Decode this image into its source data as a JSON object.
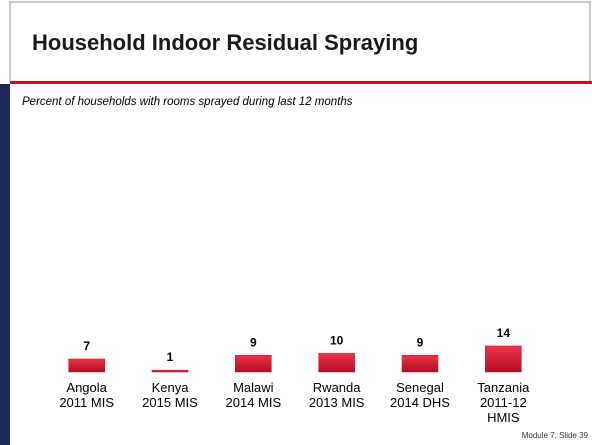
{
  "title": "Household Indoor Residual Spraying",
  "footer": "Module 7, Slide 39",
  "chart_data": {
    "type": "bar",
    "subtitle": "Percent of households with rooms sprayed during last 12 months",
    "categories": [
      "Angola\n2011 MIS",
      "Kenya\n2015 MIS",
      "Malawi\n2014 MIS",
      "Rwanda\n2013 MIS",
      "Senegal\n2014 DHS",
      "Tanzania\n2011-12\nHMIS"
    ],
    "values": [
      7,
      1,
      9,
      10,
      9,
      14
    ],
    "color": "#d0112b",
    "ylim": [
      0,
      100
    ]
  }
}
